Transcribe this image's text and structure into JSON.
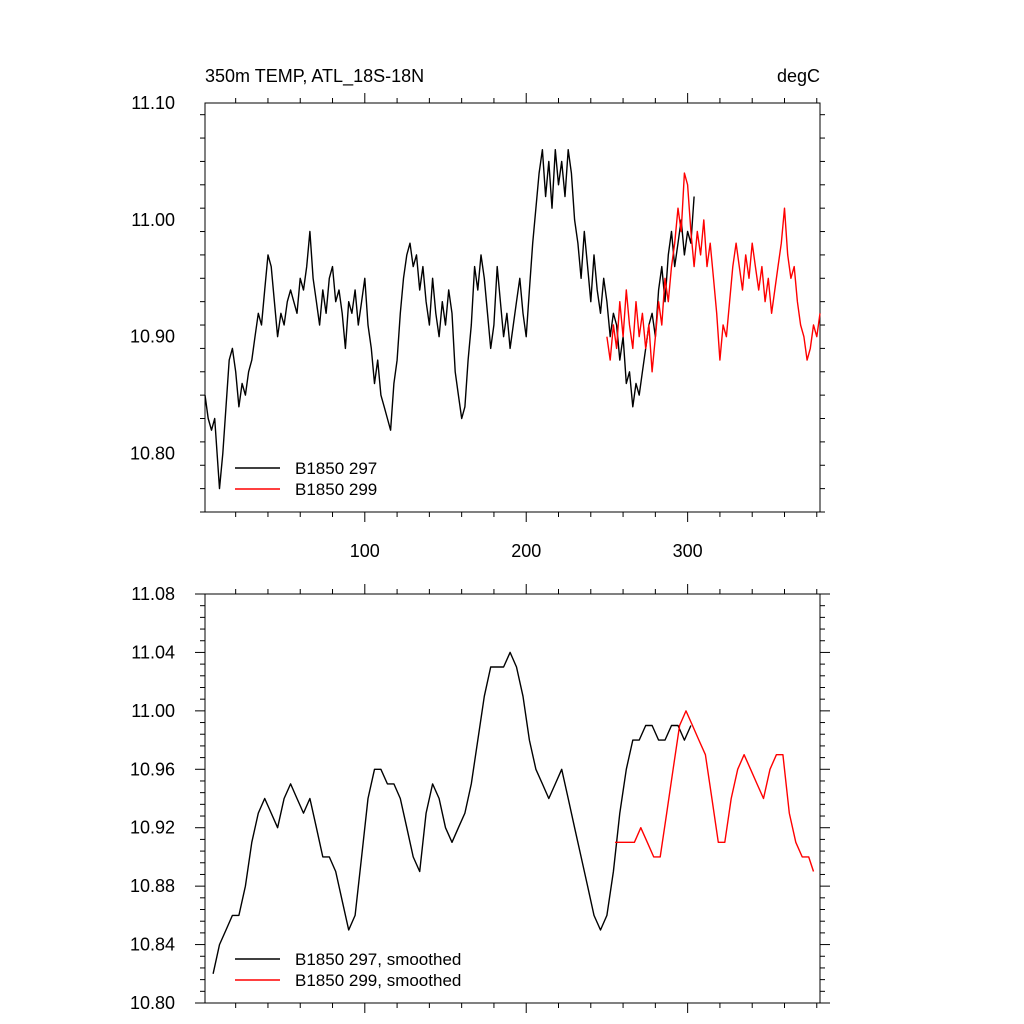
{
  "chart_data": [
    {
      "type": "line",
      "title": "350m TEMP, ATL_18S-18N",
      "units": "degC",
      "xlim": [
        1,
        382
      ],
      "ylim": [
        10.75,
        11.1
      ],
      "xticks": [
        100,
        200,
        300
      ],
      "yticks": [
        10.8,
        10.9,
        11.0,
        11.1
      ],
      "ytick_labels": [
        "10.80",
        "10.90",
        "11.00",
        "11.10"
      ],
      "legend_position": "lower-left",
      "series": [
        {
          "name": "B1850 297",
          "color": "#000000",
          "x": [
            1,
            3,
            5,
            7,
            10,
            12,
            14,
            16,
            18,
            20,
            22,
            24,
            26,
            28,
            30,
            32,
            34,
            36,
            38,
            40,
            42,
            44,
            46,
            48,
            50,
            52,
            54,
            56,
            58,
            60,
            62,
            64,
            66,
            68,
            70,
            72,
            74,
            76,
            78,
            80,
            82,
            84,
            86,
            88,
            90,
            92,
            94,
            96,
            98,
            100,
            102,
            104,
            106,
            108,
            110,
            112,
            114,
            116,
            118,
            120,
            122,
            124,
            126,
            128,
            130,
            132,
            134,
            136,
            138,
            140,
            142,
            144,
            146,
            148,
            150,
            152,
            154,
            156,
            158,
            160,
            162,
            164,
            166,
            168,
            170,
            172,
            174,
            176,
            178,
            180,
            182,
            184,
            186,
            188,
            190,
            192,
            194,
            196,
            198,
            200,
            202,
            204,
            206,
            208,
            210,
            212,
            214,
            216,
            218,
            220,
            222,
            224,
            226,
            228,
            230,
            232,
            234,
            236,
            238,
            240,
            242,
            244,
            246,
            248,
            250,
            252,
            254,
            256,
            258,
            260,
            262,
            264,
            266,
            268,
            270,
            272,
            274,
            276,
            278,
            280,
            282,
            284,
            286,
            288,
            290,
            292,
            294,
            296,
            298,
            300,
            302,
            304
          ],
          "y": [
            10.85,
            10.83,
            10.82,
            10.83,
            10.77,
            10.8,
            10.84,
            10.88,
            10.89,
            10.87,
            10.84,
            10.86,
            10.85,
            10.87,
            10.88,
            10.9,
            10.92,
            10.91,
            10.94,
            10.97,
            10.96,
            10.93,
            10.9,
            10.92,
            10.91,
            10.93,
            10.94,
            10.93,
            10.92,
            10.95,
            10.94,
            10.96,
            10.99,
            10.95,
            10.93,
            10.91,
            10.94,
            10.92,
            10.95,
            10.96,
            10.93,
            10.94,
            10.92,
            10.89,
            10.93,
            10.92,
            10.94,
            10.91,
            10.93,
            10.95,
            10.91,
            10.89,
            10.86,
            10.88,
            10.85,
            10.84,
            10.83,
            10.82,
            10.86,
            10.88,
            10.92,
            10.95,
            10.97,
            10.98,
            10.96,
            10.97,
            10.94,
            10.96,
            10.93,
            10.91,
            10.95,
            10.92,
            10.9,
            10.93,
            10.91,
            10.94,
            10.92,
            10.87,
            10.85,
            10.83,
            10.84,
            10.88,
            10.91,
            10.96,
            10.94,
            10.97,
            10.95,
            10.92,
            10.89,
            10.91,
            10.96,
            10.93,
            10.9,
            10.92,
            10.89,
            10.91,
            10.93,
            10.95,
            10.92,
            10.9,
            10.94,
            10.98,
            11.01,
            11.04,
            11.06,
            11.02,
            11.05,
            11.01,
            11.06,
            11.03,
            11.05,
            11.02,
            11.06,
            11.04,
            11.0,
            10.98,
            10.95,
            10.99,
            10.96,
            10.93,
            10.97,
            10.94,
            10.92,
            10.95,
            10.93,
            10.9,
            10.92,
            10.91,
            10.88,
            10.9,
            10.86,
            10.87,
            10.84,
            10.86,
            10.85,
            10.87,
            10.89,
            10.91,
            10.92,
            10.9,
            10.94,
            10.96,
            10.93,
            10.97,
            10.99,
            10.96,
            10.98,
            11.0,
            10.97,
            10.99,
            10.98,
            11.02
          ]
        },
        {
          "name": "B1850 299",
          "color": "#ff0000",
          "x": [
            250,
            252,
            254,
            256,
            258,
            260,
            262,
            264,
            266,
            268,
            270,
            272,
            274,
            276,
            278,
            280,
            282,
            284,
            286,
            288,
            290,
            292,
            294,
            296,
            298,
            300,
            302,
            304,
            306,
            308,
            310,
            312,
            314,
            316,
            318,
            320,
            322,
            324,
            326,
            328,
            330,
            332,
            334,
            336,
            338,
            340,
            342,
            344,
            346,
            348,
            350,
            352,
            354,
            356,
            358,
            360,
            362,
            364,
            366,
            368,
            370,
            372,
            374,
            376,
            378,
            380,
            382
          ],
          "y": [
            10.9,
            10.88,
            10.91,
            10.89,
            10.93,
            10.9,
            10.94,
            10.91,
            10.89,
            10.93,
            10.9,
            10.92,
            10.89,
            10.91,
            10.87,
            10.9,
            10.93,
            10.91,
            10.95,
            10.93,
            10.96,
            10.98,
            11.01,
            10.99,
            11.04,
            11.03,
            10.99,
            10.96,
            10.99,
            10.97,
            11.0,
            10.96,
            10.98,
            10.95,
            10.92,
            10.88,
            10.91,
            10.9,
            10.93,
            10.96,
            10.98,
            10.96,
            10.94,
            10.97,
            10.95,
            10.98,
            10.96,
            10.94,
            10.96,
            10.93,
            10.95,
            10.92,
            10.94,
            10.96,
            10.98,
            11.01,
            10.97,
            10.95,
            10.96,
            10.93,
            10.91,
            10.9,
            10.88,
            10.89,
            10.91,
            10.9,
            10.92
          ]
        }
      ]
    },
    {
      "type": "line",
      "title": "",
      "xlim": [
        1,
        382
      ],
      "ylim": [
        10.8,
        11.08
      ],
      "xticks": [
        100,
        200,
        300
      ],
      "yticks": [
        10.8,
        10.84,
        10.88,
        10.92,
        10.96,
        11.0,
        11.04,
        11.08
      ],
      "ytick_labels": [
        "10.80",
        "10.84",
        "10.88",
        "10.92",
        "10.96",
        "11.00",
        "11.04",
        "11.08"
      ],
      "legend_position": "lower-left",
      "series": [
        {
          "name": "B1850 297, smoothed",
          "color": "#000000",
          "x": [
            6,
            10,
            14,
            18,
            22,
            26,
            30,
            34,
            38,
            42,
            46,
            50,
            54,
            58,
            62,
            66,
            70,
            74,
            78,
            82,
            86,
            90,
            94,
            98,
            102,
            106,
            110,
            114,
            118,
            122,
            126,
            130,
            134,
            138,
            142,
            146,
            150,
            154,
            158,
            162,
            166,
            170,
            174,
            178,
            182,
            186,
            190,
            194,
            198,
            202,
            206,
            210,
            214,
            218,
            222,
            226,
            230,
            234,
            238,
            242,
            246,
            250,
            254,
            258,
            262,
            266,
            270,
            274,
            278,
            282,
            286,
            290,
            294,
            298,
            302
          ],
          "y": [
            10.82,
            10.84,
            10.85,
            10.86,
            10.86,
            10.88,
            10.91,
            10.93,
            10.94,
            10.93,
            10.92,
            10.94,
            10.95,
            10.94,
            10.93,
            10.94,
            10.92,
            10.9,
            10.9,
            10.89,
            10.87,
            10.85,
            10.86,
            10.9,
            10.94,
            10.96,
            10.96,
            10.95,
            10.95,
            10.94,
            10.92,
            10.9,
            10.89,
            10.93,
            10.95,
            10.94,
            10.92,
            10.91,
            10.92,
            10.93,
            10.95,
            10.98,
            11.01,
            11.03,
            11.03,
            11.03,
            11.04,
            11.03,
            11.01,
            10.98,
            10.96,
            10.95,
            10.94,
            10.95,
            10.96,
            10.94,
            10.92,
            10.9,
            10.88,
            10.86,
            10.85,
            10.86,
            10.89,
            10.93,
            10.96,
            10.98,
            10.98,
            10.99,
            10.99,
            10.98,
            10.98,
            10.99,
            10.99,
            10.98,
            10.99
          ]
        },
        {
          "name": "B1850 299, smoothed",
          "color": "#ff0000",
          "x": [
            255,
            259,
            263,
            267,
            271,
            275,
            279,
            283,
            287,
            291,
            295,
            299,
            303,
            307,
            311,
            315,
            319,
            323,
            327,
            331,
            335,
            339,
            343,
            347,
            351,
            355,
            359,
            363,
            367,
            371,
            375,
            378
          ],
          "y": [
            10.91,
            10.91,
            10.91,
            10.91,
            10.92,
            10.91,
            10.9,
            10.9,
            10.93,
            10.96,
            10.99,
            11.0,
            10.99,
            10.98,
            10.97,
            10.94,
            10.91,
            10.91,
            10.94,
            10.96,
            10.97,
            10.96,
            10.95,
            10.94,
            10.96,
            10.97,
            10.97,
            10.93,
            10.91,
            10.9,
            10.9,
            10.89
          ]
        }
      ]
    }
  ]
}
